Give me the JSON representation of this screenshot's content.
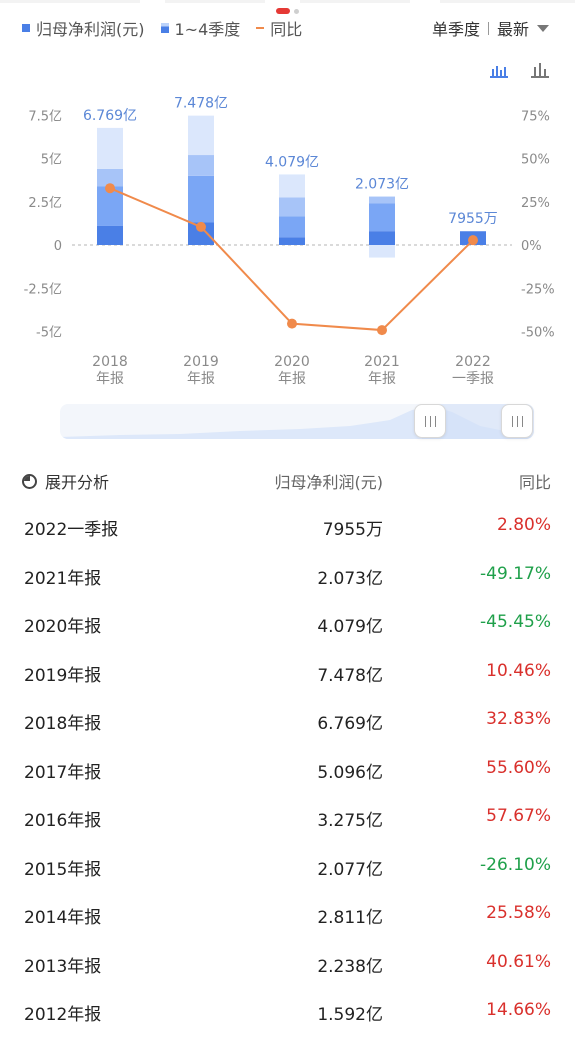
{
  "legend": {
    "profit": "归母净利润(元)",
    "quarters": "1~4季度",
    "yoy": "同比"
  },
  "period": {
    "mode": "单季度",
    "sort": "最新"
  },
  "icons": [
    "bar-stack-icon",
    "bar-chart-icon",
    "chevron-down-icon",
    "pie-icon",
    "drag-handle-icon"
  ],
  "colors": {
    "bar_dark": "#4a7fe6",
    "bar_mid": "#7aa6f5",
    "bar_light": "#a7c4f8",
    "bar_faint": "#dbe7fc",
    "line": "#f08a4b",
    "label": "#5b87d6",
    "positive": "#d9302c",
    "negative": "#1fa04a"
  },
  "chart_data": {
    "type": "bar",
    "categories": [
      "2018\n年报",
      "2019\n年报",
      "2020\n年报",
      "2021\n年报",
      "2022\n一季报"
    ],
    "category_lines": [
      [
        "2018",
        "年报"
      ],
      [
        "2019",
        "年报"
      ],
      [
        "2020",
        "年报"
      ],
      [
        "2021",
        "年报"
      ],
      [
        "2022",
        "一季报"
      ]
    ],
    "totals": [
      6.769,
      7.478,
      4.079,
      2.073,
      0.7955
    ],
    "total_labels": [
      "6.769亿",
      "7.478亿",
      "4.079亿",
      "2.073亿",
      "7955万"
    ],
    "quarter_values": [
      [
        1.1,
        2.3,
        1.0,
        2.369
      ],
      [
        1.3,
        2.7,
        1.2,
        2.278
      ],
      [
        0.45,
        1.2,
        1.1,
        1.329
      ],
      [
        0.8,
        1.6,
        0.4,
        -0.727
      ],
      [
        0.7955
      ]
    ],
    "series": [
      {
        "name": "归母净利润(元)",
        "axis": "left",
        "values": [
          6.769,
          7.478,
          4.079,
          2.073,
          0.7955
        ]
      },
      {
        "name": "同比",
        "axis": "right",
        "values": [
          32.83,
          10.46,
          -45.45,
          -49.17,
          2.8
        ]
      }
    ],
    "left_axis": {
      "ylim": [
        -5,
        7.5
      ],
      "ticks": [
        7.5,
        5,
        2.5,
        0,
        -2.5,
        -5
      ],
      "tick_labels": [
        "7.5亿",
        "5亿",
        "2.5亿",
        "0",
        "-2.5亿",
        "-5亿"
      ]
    },
    "right_axis": {
      "ylim": [
        -50,
        75
      ],
      "ticks": [
        75,
        50,
        25,
        0,
        -25,
        -50
      ],
      "tick_labels": [
        "75%",
        "50%",
        "25%",
        "0%",
        "-25%",
        "-50%"
      ]
    },
    "grid": false
  },
  "table": {
    "expand_label": "展开分析",
    "col_value": "归母净利润(元)",
    "col_yoy": "同比",
    "rows": [
      {
        "period": "2022一季报",
        "value": "7955万",
        "yoy": "2.80%",
        "sign": "pos"
      },
      {
        "period": "2021年报",
        "value": "2.073亿",
        "yoy": "-49.17%",
        "sign": "neg"
      },
      {
        "period": "2020年报",
        "value": "4.079亿",
        "yoy": "-45.45%",
        "sign": "neg"
      },
      {
        "period": "2019年报",
        "value": "7.478亿",
        "yoy": "10.46%",
        "sign": "pos"
      },
      {
        "period": "2018年报",
        "value": "6.769亿",
        "yoy": "32.83%",
        "sign": "pos"
      },
      {
        "period": "2017年报",
        "value": "5.096亿",
        "yoy": "55.60%",
        "sign": "pos"
      },
      {
        "period": "2016年报",
        "value": "3.275亿",
        "yoy": "57.67%",
        "sign": "pos"
      },
      {
        "period": "2015年报",
        "value": "2.077亿",
        "yoy": "-26.10%",
        "sign": "neg"
      },
      {
        "period": "2014年报",
        "value": "2.811亿",
        "yoy": "25.58%",
        "sign": "pos"
      },
      {
        "period": "2013年报",
        "value": "2.238亿",
        "yoy": "40.61%",
        "sign": "pos"
      },
      {
        "period": "2012年报",
        "value": "1.592亿",
        "yoy": "14.66%",
        "sign": "pos"
      }
    ]
  }
}
